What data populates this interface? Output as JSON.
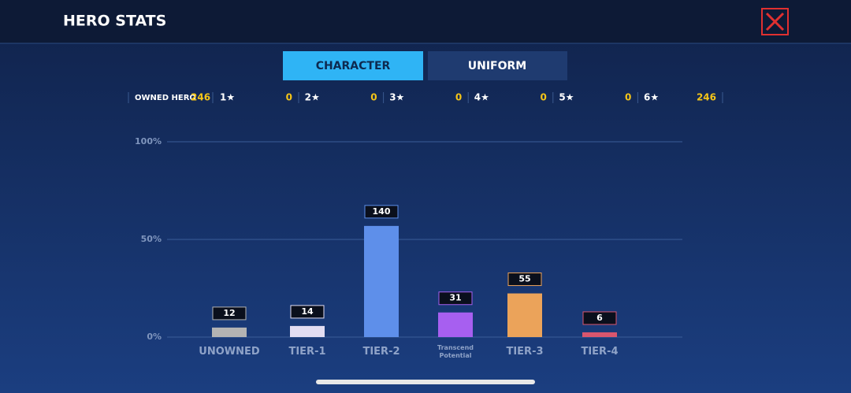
{
  "header": {
    "title": "HERO STATS"
  },
  "tabs": [
    "CHARACTER",
    "UNIFORM"
  ],
  "owned": {
    "label": "OWNED HERO",
    "total": 246,
    "stars": [
      {
        "label": "1★",
        "count": 0
      },
      {
        "label": "2★",
        "count": 0
      },
      {
        "label": "3★",
        "count": 0
      },
      {
        "label": "4★",
        "count": 0
      },
      {
        "label": "5★",
        "count": 0
      },
      {
        "label": "6★",
        "count": 246
      }
    ]
  },
  "chart_data": {
    "type": "bar",
    "categories": [
      "UNOWNED",
      "TIER-1",
      "TIER-2",
      "Transcend Potential",
      "TIER-3",
      "TIER-4"
    ],
    "values": [
      12,
      14,
      140,
      31,
      55,
      6
    ],
    "colors": [
      "#b3b3b3",
      "#e2ddf2",
      "#5e8fea",
      "#a75ff0",
      "#eba35a",
      "#d9566e"
    ],
    "ylim": [
      0,
      246
    ],
    "yticks": [
      {
        "value": 0,
        "label": "0%"
      },
      {
        "value": 123,
        "label": "50%"
      },
      {
        "value": 246,
        "label": "100%"
      }
    ],
    "grid": true
  }
}
